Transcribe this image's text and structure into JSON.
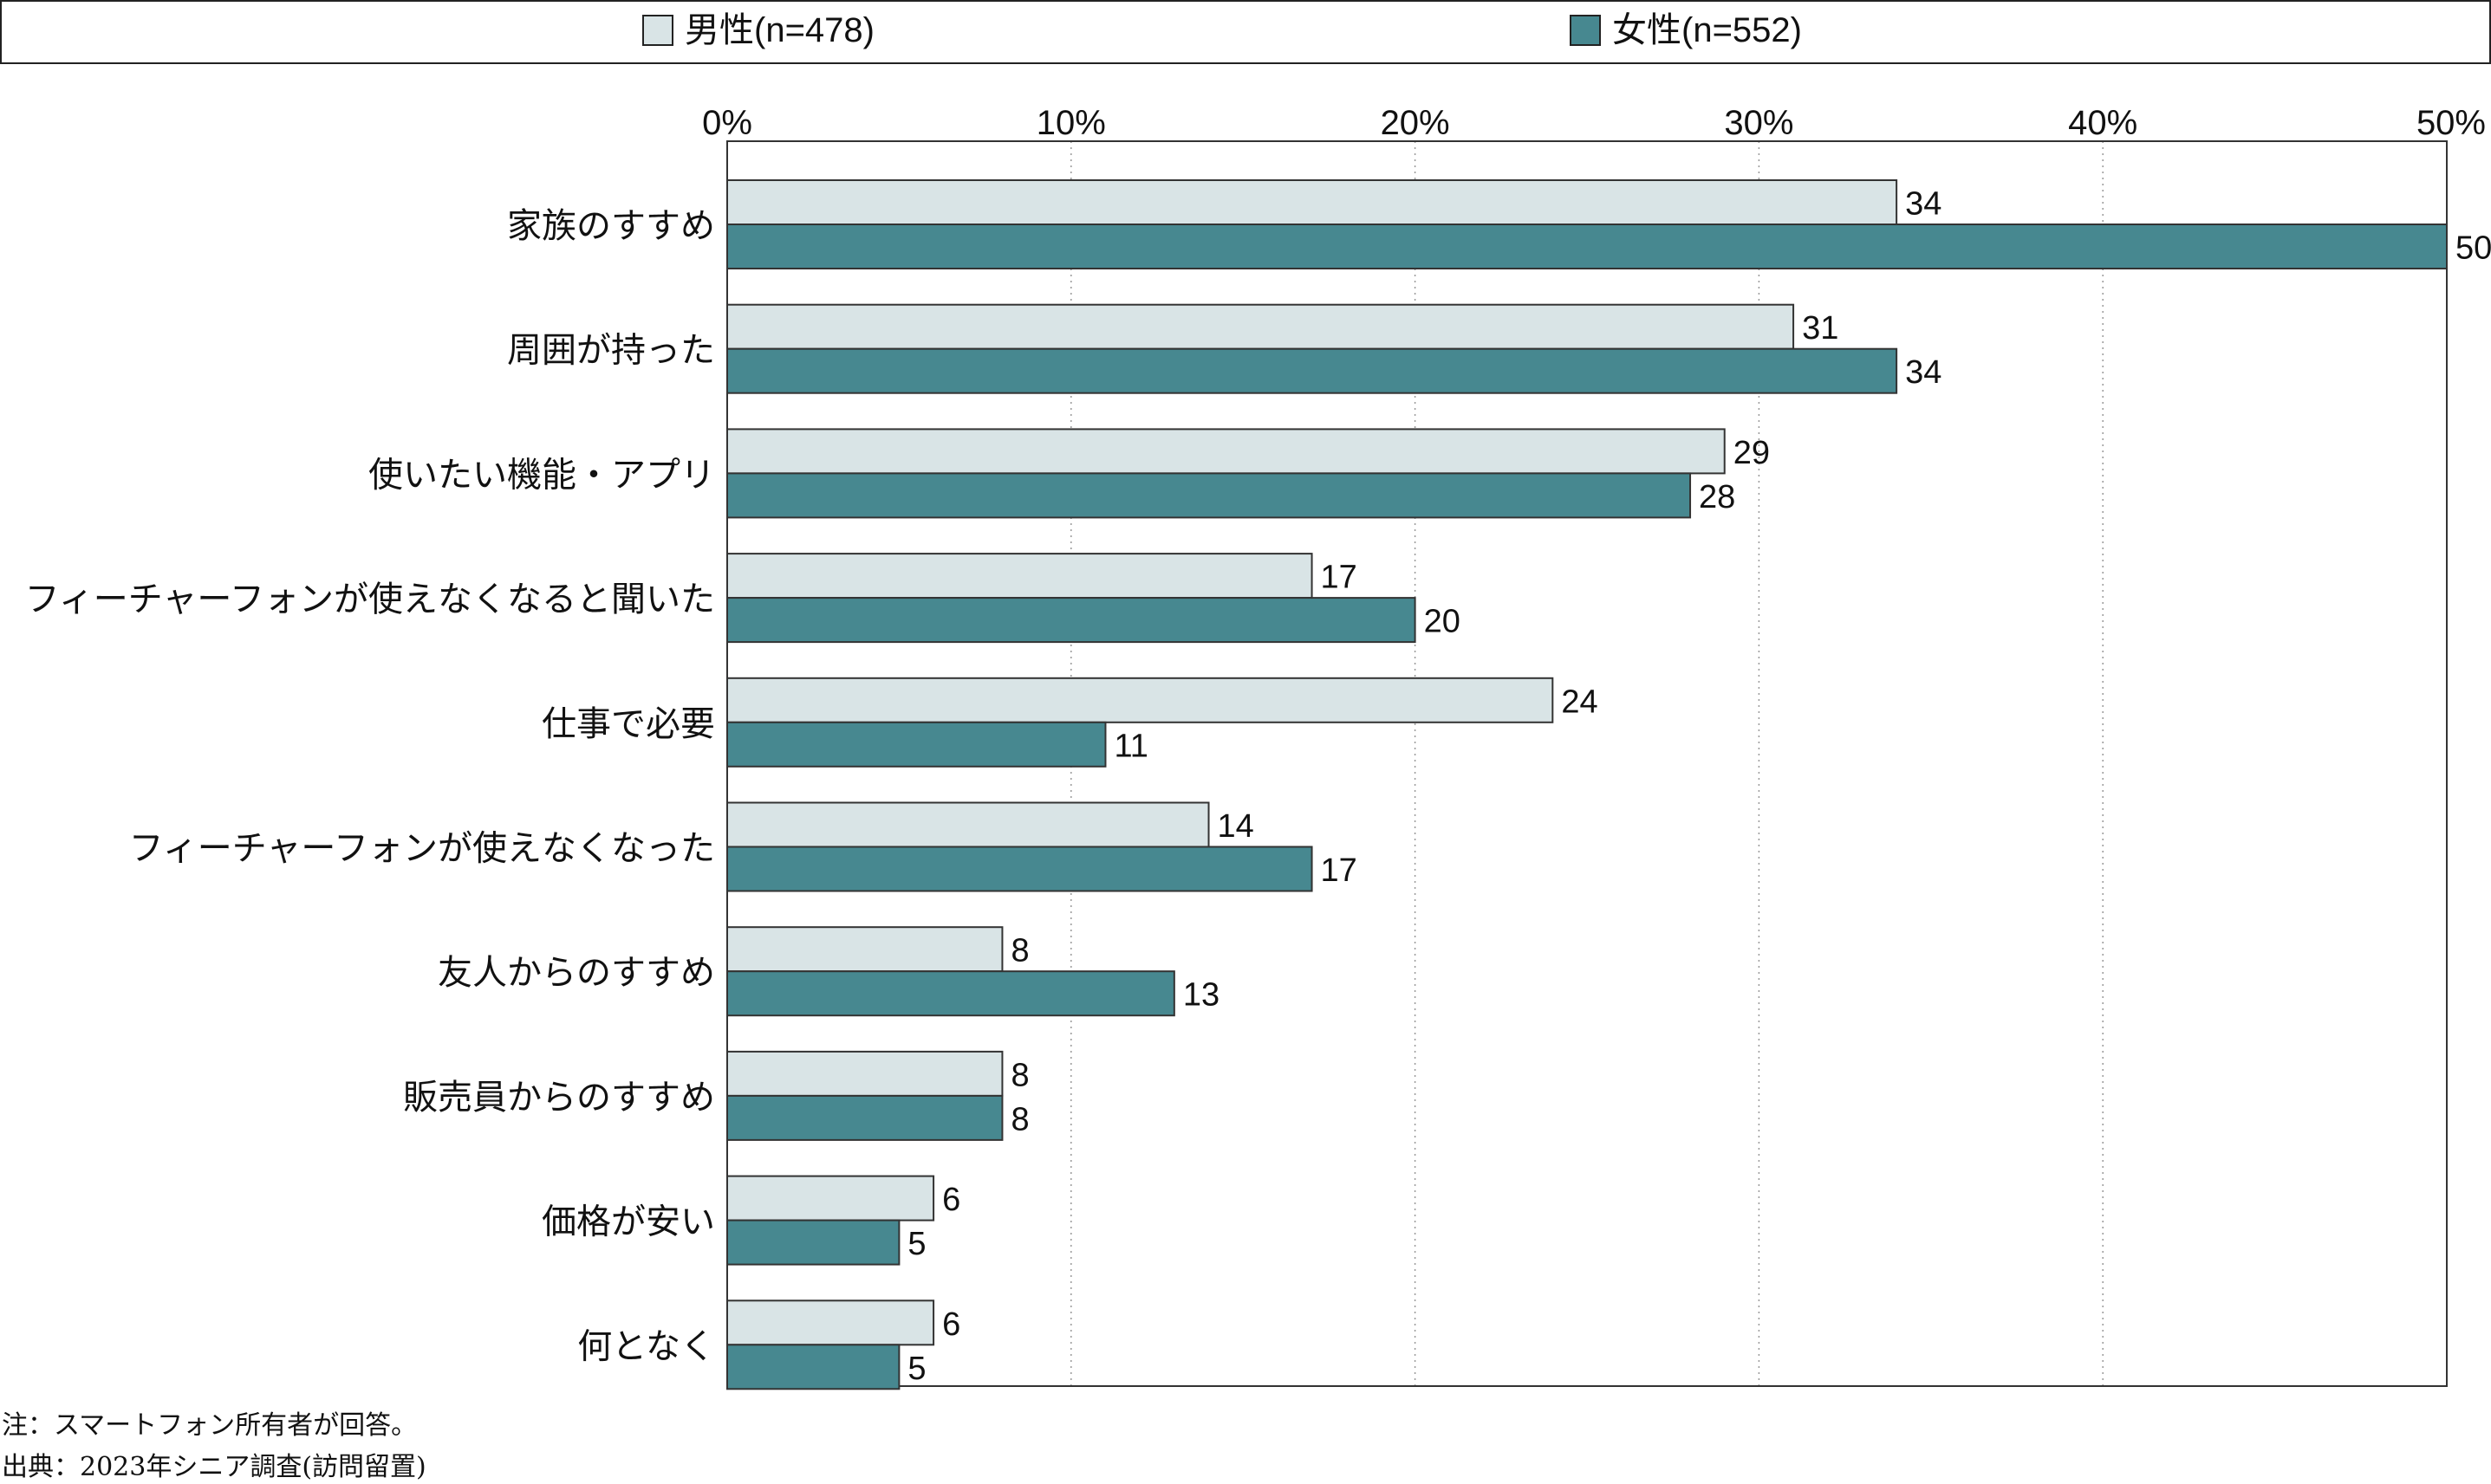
{
  "chart_data": {
    "type": "bar",
    "orientation": "horizontal",
    "categories": [
      "家族のすすめ",
      "周囲が持った",
      "使いたい機能・アプリ",
      "フィーチャーフォンが使えなくなると聞いた",
      "仕事で必要",
      "フィーチャーフォンが使えなくなった",
      "友人からのすすめ",
      "販売員からのすすめ",
      "価格が安い",
      "何となく"
    ],
    "series": [
      {
        "name": "男性(n=478)",
        "color": "#d9e4e6",
        "values": [
          34,
          31,
          29,
          17,
          24,
          14,
          8,
          8,
          6,
          6
        ]
      },
      {
        "name": "女性(n=552)",
        "color": "#478890",
        "values": [
          50,
          34,
          28,
          20,
          11,
          17,
          13,
          8,
          5,
          5
        ]
      }
    ],
    "x_ticks": [
      "0%",
      "10%",
      "20%",
      "30%",
      "40%",
      "50%"
    ],
    "xlim": [
      0,
      50
    ],
    "grid": "vertical dotted",
    "legend": "top"
  },
  "notes": {
    "note": "注：スマートフォン所有者が回答。",
    "source": "出典：2023年シニア調査(訪問留置)"
  }
}
